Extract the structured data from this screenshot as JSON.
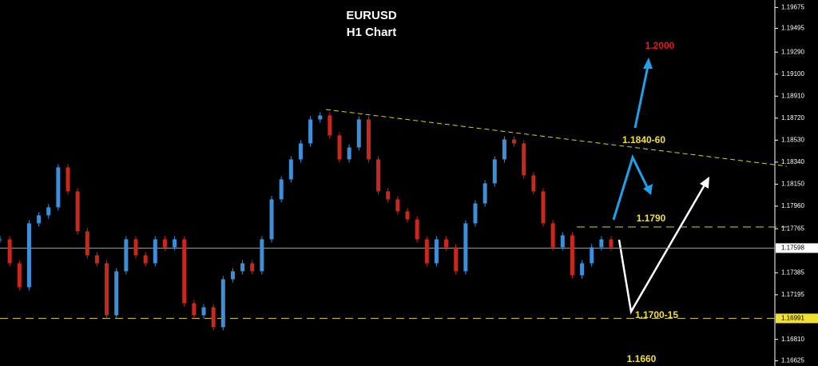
{
  "chart_data": {
    "type": "candlestick",
    "title": "EURUSD",
    "subtitle": "H1 Chart",
    "up_color": "#3d8fd8",
    "down_color": "#c8281e",
    "close": [
      1.17674,
      1.17467,
      1.1726,
      1.17812,
      1.17881,
      1.1795,
      1.18295,
      1.18088,
      1.17743,
      1.17536,
      1.17467,
      1.17018,
      1.17398,
      1.17674,
      1.17536,
      1.17467,
      1.17674,
      1.17605,
      1.17674,
      1.17122,
      1.17018,
      1.17087,
      1.16915,
      1.17329,
      1.17398,
      1.17467,
      1.17398,
      1.17674,
      1.18019,
      1.18191,
      1.18364,
      1.18502,
      1.18709,
      1.18743,
      1.18571,
      1.18364,
      1.18467,
      1.18709,
      1.18364,
      1.18088,
      1.18019,
      1.17915,
      1.17846,
      1.17674,
      1.17467,
      1.17674,
      1.17605,
      1.17398,
      1.17812,
      1.17984,
      1.18157,
      1.18364,
      1.18536,
      1.18502,
      1.18226,
      1.18088,
      1.17812,
      1.17605,
      1.17708,
      1.17363,
      1.17467,
      1.17605,
      1.17674,
      1.17605
    ],
    "ylim": [
      1.1658,
      1.1974
    ],
    "yticks": [
      1.19675,
      1.19495,
      {
        "value": 1.1929,
        "label": "1.19290"
      },
      {
        "value": 1.191,
        "label": "1.19100"
      },
      {
        "value": 1.1891,
        "label": "1.18910"
      },
      {
        "value": 1.1872,
        "label": "1.18720"
      },
      {
        "value": 1.1853,
        "label": "1.18530"
      },
      {
        "value": 1.1834,
        "label": "1.18340"
      },
      {
        "value": 1.1815,
        "label": "1.18150"
      },
      {
        "value": 1.1796,
        "label": "1.17960"
      },
      1.17765,
      1.17385,
      1.17195,
      {
        "value": 1.1681,
        "label": "1.16810"
      },
      1.16625
    ],
    "current_price": 1.17598,
    "level_price": 1.16991,
    "annotations": [
      {
        "text": "1.2000",
        "color": "#e8141e"
      },
      {
        "text": "1.1840-60",
        "color": "#f0e030"
      },
      {
        "text": "1.1790",
        "color": "#f0e030"
      },
      {
        "text": "1.1700-15",
        "color": "#f0e030"
      },
      {
        "text": "1.1660",
        "color": "#f0e030"
      }
    ]
  }
}
